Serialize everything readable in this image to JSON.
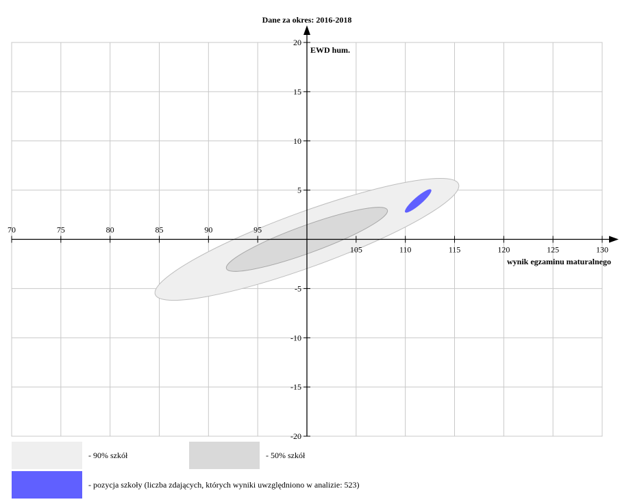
{
  "chart_data": {
    "type": "ellipse",
    "title": "Dane za okres: 2016-2018",
    "x_label": "wynik egzaminu maturalnego",
    "y_label": "EWD hum.",
    "xlim": [
      70,
      130
    ],
    "ylim": [
      -20,
      20
    ],
    "xticks": [
      70,
      75,
      80,
      85,
      90,
      95,
      105,
      110,
      115,
      120,
      125,
      130
    ],
    "yticks": [
      20,
      15,
      10,
      5,
      -5,
      -10,
      -15,
      -20
    ],
    "grid": true,
    "series": [
      {
        "name": "- 90% szkół",
        "color": "#efefef",
        "cx": 100,
        "cy": 0,
        "rx": 16.4,
        "ry": 2.8,
        "angle": 20
      },
      {
        "name": "- 50% szkół",
        "color": "#d9d9d9",
        "cx": 100,
        "cy": 0,
        "rx": 8.7,
        "ry": 1.4,
        "angle": 20
      },
      {
        "name": "- pozycja szkoły (liczba zdających, których wyniki uwzględniono w analizie: 523)",
        "color": "#6060ff",
        "cx": 111.3,
        "cy": 3.9,
        "rx": 1.75,
        "ry": 0.4,
        "angle": 41
      }
    ]
  }
}
